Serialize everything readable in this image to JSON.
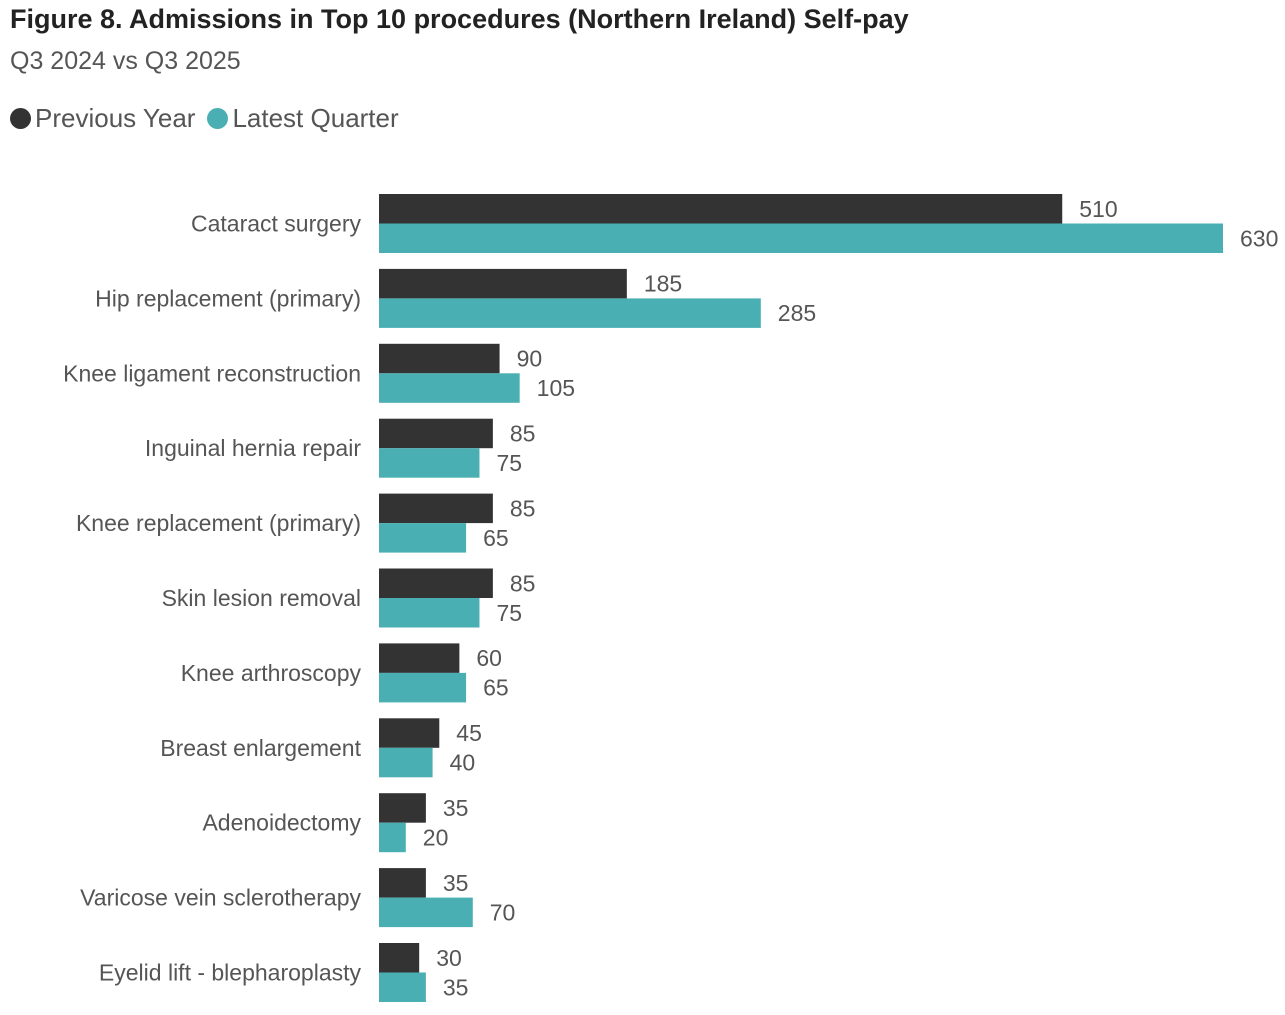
{
  "title": "Figure 8. Admissions in Top 10 procedures (Northern Ireland) Self-pay",
  "subtitle": "Q3 2024 vs Q3 2025",
  "colors": {
    "previous": "#333333",
    "latest": "#4AAFB3",
    "label_text": "#555555",
    "category_text": "#555555"
  },
  "chart_data": {
    "type": "bar",
    "orientation": "horizontal",
    "title": "Figure 8. Admissions in Top 10 procedures (Northern Ireland) Self-pay",
    "subtitle": "Q3 2024 vs Q3 2025",
    "legend_position": "top-left",
    "grid": false,
    "xlim": [
      0,
      630
    ],
    "categories": [
      "Cataract surgery",
      "Hip replacement (primary)",
      "Knee ligament reconstruction",
      "Inguinal hernia repair",
      "Knee replacement (primary)",
      "Skin lesion removal",
      "Knee arthroscopy",
      "Breast enlargement",
      "Adenoidectomy",
      "Varicose vein sclerotherapy",
      "Eyelid lift - blepharoplasty"
    ],
    "series": [
      {
        "name": "Previous Year",
        "values": [
          510,
          185,
          90,
          85,
          85,
          85,
          60,
          45,
          35,
          35,
          30
        ]
      },
      {
        "name": "Latest Quarter",
        "values": [
          630,
          285,
          105,
          75,
          65,
          75,
          65,
          40,
          20,
          70,
          35
        ]
      }
    ]
  }
}
